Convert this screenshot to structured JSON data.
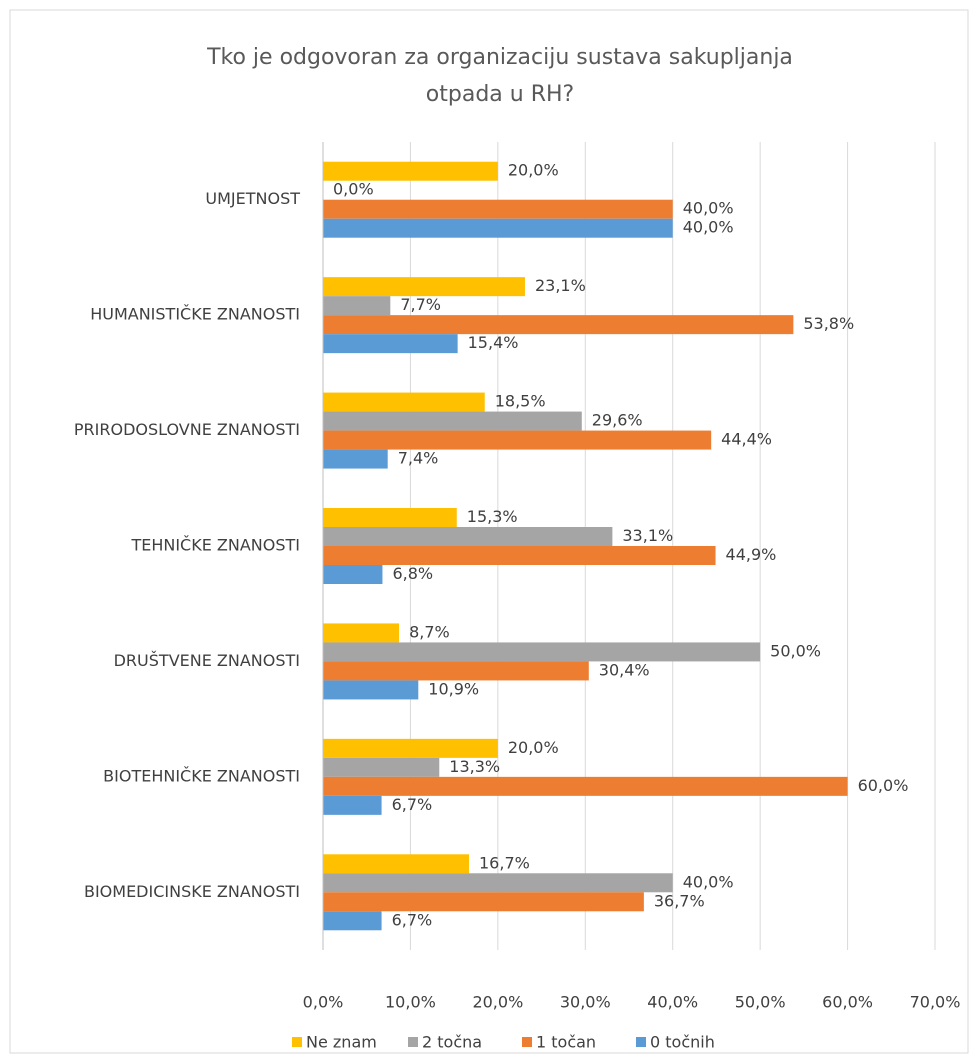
{
  "chart_data": {
    "type": "hbar",
    "title": [
      "Tko je odgovoran za organizaciju sustava sakupljanja",
      "otpada u RH?"
    ],
    "categories": [
      "UMJETNOST",
      "HUMANISTIČKE ZNANOSTI",
      "PRIRODOSLOVNE ZNANOSTI",
      "TEHNIČKE ZNANOSTI",
      "DRUŠTVENE ZNANOSTI",
      "BIOTEHNIČKE ZNANOSTI",
      "BIOMEDICINSKE ZNANOSTI"
    ],
    "series": [
      {
        "name": "Ne znam",
        "color": "#ffc000",
        "values": [
          20.0,
          23.1,
          18.5,
          15.3,
          8.7,
          20.0,
          16.7
        ],
        "value_labels": [
          "20,0%",
          "23,1%",
          "18,5%",
          "15,3%",
          "8,7%",
          "20,0%",
          "16,7%"
        ]
      },
      {
        "name": "2 točna",
        "color": "#a5a5a5",
        "values": [
          0.0,
          7.7,
          29.6,
          33.1,
          50.0,
          13.3,
          40.0
        ],
        "value_labels": [
          "0,0%",
          "7,7%",
          "29,6%",
          "33,1%",
          "50,0%",
          "13,3%",
          "40,0%"
        ]
      },
      {
        "name": "1 točan",
        "color": "#ed7d31",
        "values": [
          40.0,
          53.8,
          44.4,
          44.9,
          30.4,
          60.0,
          36.7
        ],
        "value_labels": [
          "40,0%",
          "53,8%",
          "44,4%",
          "44,9%",
          "30,4%",
          "60,0%",
          "36,7%"
        ]
      },
      {
        "name": "0 točnih",
        "color": "#5b9bd5",
        "values": [
          40.0,
          15.4,
          7.4,
          6.8,
          10.9,
          6.7,
          6.7
        ],
        "value_labels": [
          "40,0%",
          "15,4%",
          "7,4%",
          "6,8%",
          "10,9%",
          "6,7%",
          "6,7%"
        ]
      }
    ],
    "xlim": [
      0,
      70
    ],
    "xticks": [
      {
        "value": 0,
        "label": "0,0%"
      },
      {
        "value": 10,
        "label": "10,0%"
      },
      {
        "value": 20,
        "label": "20,0%"
      },
      {
        "value": 30,
        "label": "30,0%"
      },
      {
        "value": 40,
        "label": "40,0%"
      },
      {
        "value": 50,
        "label": "50,0%"
      },
      {
        "value": 60,
        "label": "60,0%"
      },
      {
        "value": 70,
        "label": "70,0%"
      }
    ],
    "grid": true,
    "legend": "bottom"
  }
}
